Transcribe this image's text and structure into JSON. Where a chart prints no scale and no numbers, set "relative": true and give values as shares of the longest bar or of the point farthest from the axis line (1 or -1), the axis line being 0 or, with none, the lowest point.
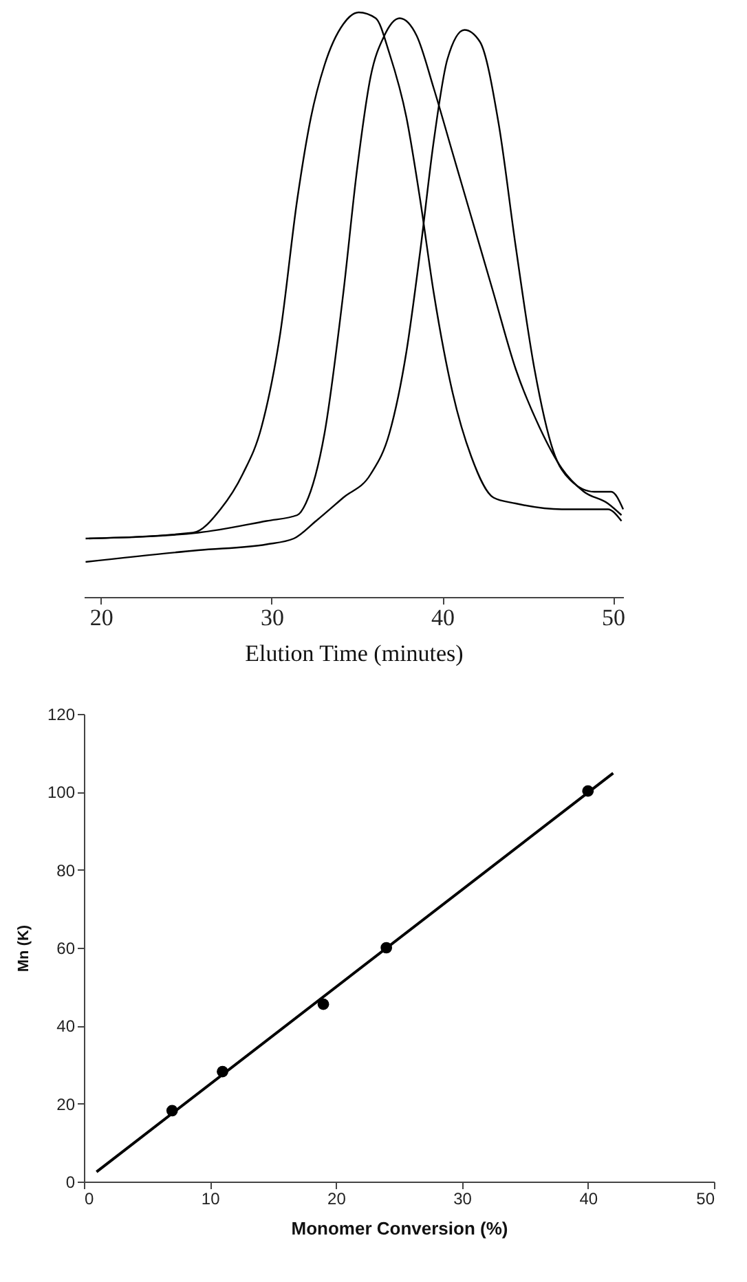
{
  "chart_data": [
    {
      "type": "line",
      "relative": true,
      "xlabel": "Elution Time (minutes)",
      "xlim": [
        19,
        50.6
      ],
      "xticks": [
        20,
        30,
        40,
        50
      ],
      "series": [
        {
          "color": "#000000",
          "x": [
            19.1,
            25.4,
            27,
            28.3,
            29.4,
            30.5,
            31.5,
            32.3,
            33.1,
            34.2,
            35.1,
            36.1,
            36.9,
            37.9,
            38.7,
            39.5,
            40.6,
            41.7,
            43,
            44.3,
            47,
            49.7,
            50.5
          ],
          "values": [
            0.1,
            0.11,
            0.15,
            0.21,
            0.29,
            0.45,
            0.68,
            0.82,
            0.91,
            0.98,
            1,
            0.99,
            0.93,
            0.82,
            0.68,
            0.52,
            0.35,
            0.24,
            0.17,
            0.16,
            0.15,
            0.15,
            0.13
          ]
        },
        {
          "color": "#000000",
          "x": [
            19.3,
            25.7,
            29.7,
            31.5,
            32,
            33.1,
            34.2,
            35,
            35.8,
            36.6,
            37.5,
            38.5,
            39.5,
            40.6,
            41.7,
            43,
            44.3,
            45.7,
            47,
            48.3,
            49.7,
            50.5
          ],
          "values": [
            0.1,
            0.11,
            0.13,
            0.14,
            0.16,
            0.28,
            0.52,
            0.73,
            0.89,
            0.96,
            0.99,
            0.96,
            0.87,
            0.76,
            0.65,
            0.52,
            0.39,
            0.29,
            0.22,
            0.18,
            0.16,
            0.14
          ]
        },
        {
          "color": "#000000",
          "x": [
            19.1,
            25.7,
            29.7,
            31.3,
            32.6,
            34.2,
            35.8,
            36.9,
            37.9,
            38.7,
            39.5,
            40.3,
            41.3,
            42.2,
            43.3,
            44.3,
            45.4,
            46.5,
            47.5,
            48.9,
            49.9,
            50.6
          ],
          "values": [
            0.06,
            0.08,
            0.09,
            0.1,
            0.13,
            0.17,
            0.21,
            0.28,
            0.42,
            0.59,
            0.78,
            0.92,
            0.97,
            0.95,
            0.81,
            0.6,
            0.39,
            0.25,
            0.2,
            0.18,
            0.18,
            0.15
          ]
        }
      ]
    },
    {
      "type": "scatter",
      "xlabel": "Monomer Conversion (%)",
      "ylabel": "Mn (K)",
      "xlim": [
        0,
        50
      ],
      "xticks": [
        0,
        10,
        20,
        30,
        40,
        50
      ],
      "ylim": [
        0,
        120
      ],
      "yticks": [
        0,
        20,
        40,
        60,
        80,
        100,
        120
      ],
      "series": [
        {
          "type": "scatter",
          "color": "#000000",
          "x": [
            7,
            11,
            19,
            24,
            40
          ],
          "values": [
            18.2,
            28.2,
            45.5,
            60,
            100.2
          ]
        },
        {
          "type": "line",
          "color": "#000000",
          "x": [
            1,
            42
          ],
          "values": [
            2.5,
            104.8
          ]
        }
      ]
    }
  ]
}
